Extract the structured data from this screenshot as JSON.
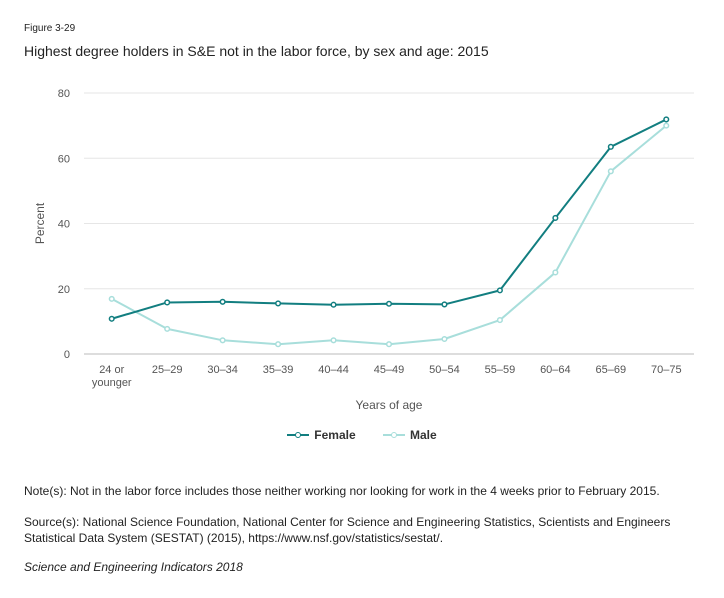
{
  "figure_label": "Figure 3-29",
  "note": "Note(s): Not in the labor force includes those neither working nor looking for work in the 4 weeks prior to February 2015.",
  "source": "Source(s): National Science Foundation, National Center for Science and Engineering Statistics, Scientists and Engineers Statistical Data System (SESTAT) (2015), https://www.nsf.gov/statistics/sestat/.",
  "credit": "Science and Engineering Indicators 2018",
  "colors": {
    "female": "#127e80",
    "male": "#a8dedb",
    "grid": "#e6e6e6",
    "axis": "#bbbbbb"
  },
  "chart_data": {
    "type": "line",
    "title": "Highest degree holders in S&E not in the labor force, by sex and age: 2015",
    "xlabel": "Years of age",
    "ylabel": "Percent",
    "ylim": [
      0,
      80
    ],
    "yticks": [
      0,
      20,
      40,
      60,
      80
    ],
    "categories": [
      "24 or younger",
      "25–29",
      "30–34",
      "35–39",
      "40–44",
      "45–49",
      "50–54",
      "55–59",
      "60–64",
      "65–69",
      "70–75"
    ],
    "series": [
      {
        "name": "Female",
        "values": [
          10.8,
          15.8,
          16.0,
          15.5,
          15.1,
          15.4,
          15.2,
          19.5,
          41.7,
          63.5,
          71.9
        ]
      },
      {
        "name": "Male",
        "values": [
          16.9,
          7.7,
          4.2,
          3.0,
          4.2,
          3.0,
          4.6,
          10.4,
          25.0,
          56.0,
          70.0
        ]
      }
    ],
    "legend": "bottom-center"
  }
}
